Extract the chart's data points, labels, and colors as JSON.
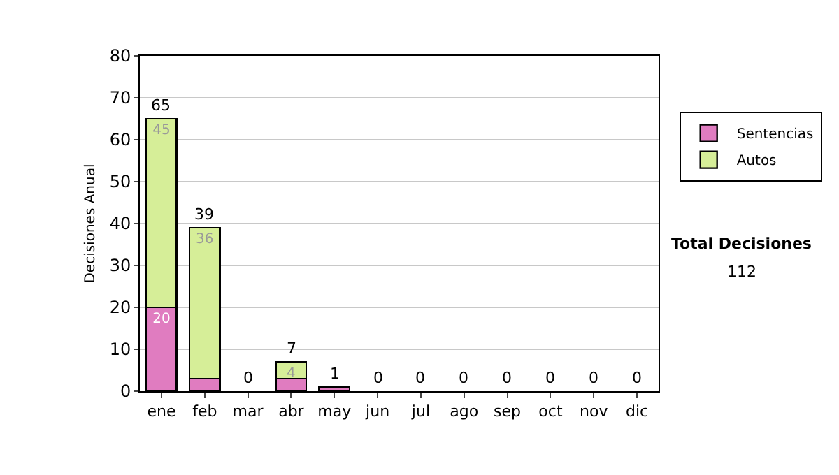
{
  "chart_data": {
    "type": "bar",
    "stacked": true,
    "ylabel": "Decisiones Anual",
    "categories": [
      "ene",
      "feb",
      "mar",
      "abr",
      "may",
      "jun",
      "jul",
      "ago",
      "sep",
      "oct",
      "nov",
      "dic"
    ],
    "series": [
      {
        "name": "Sentencias",
        "color": "#e07cc0",
        "values": [
          20,
          3,
          0,
          3,
          1,
          0,
          0,
          0,
          0,
          0,
          0,
          0
        ],
        "value_labels": [
          "20",
          null,
          null,
          null,
          null,
          null,
          null,
          null,
          null,
          null,
          null,
          null
        ]
      },
      {
        "name": "Autos",
        "color": "#d6ee98",
        "values": [
          45,
          36,
          0,
          4,
          0,
          0,
          0,
          0,
          0,
          0,
          0,
          0
        ],
        "value_labels": [
          "45",
          "36",
          null,
          "4",
          null,
          null,
          null,
          null,
          null,
          null,
          null,
          null
        ]
      }
    ],
    "totals": [
      "65",
      "39",
      "0",
      "7",
      "1",
      "0",
      "0",
      "0",
      "0",
      "0",
      "0",
      "0"
    ],
    "ylim": [
      0,
      80
    ],
    "yticks": [
      0,
      10,
      20,
      30,
      40,
      50,
      60,
      70,
      80
    ],
    "grid": "y",
    "legend": "right",
    "annotations": [
      "Total Decisiones",
      "112"
    ]
  }
}
